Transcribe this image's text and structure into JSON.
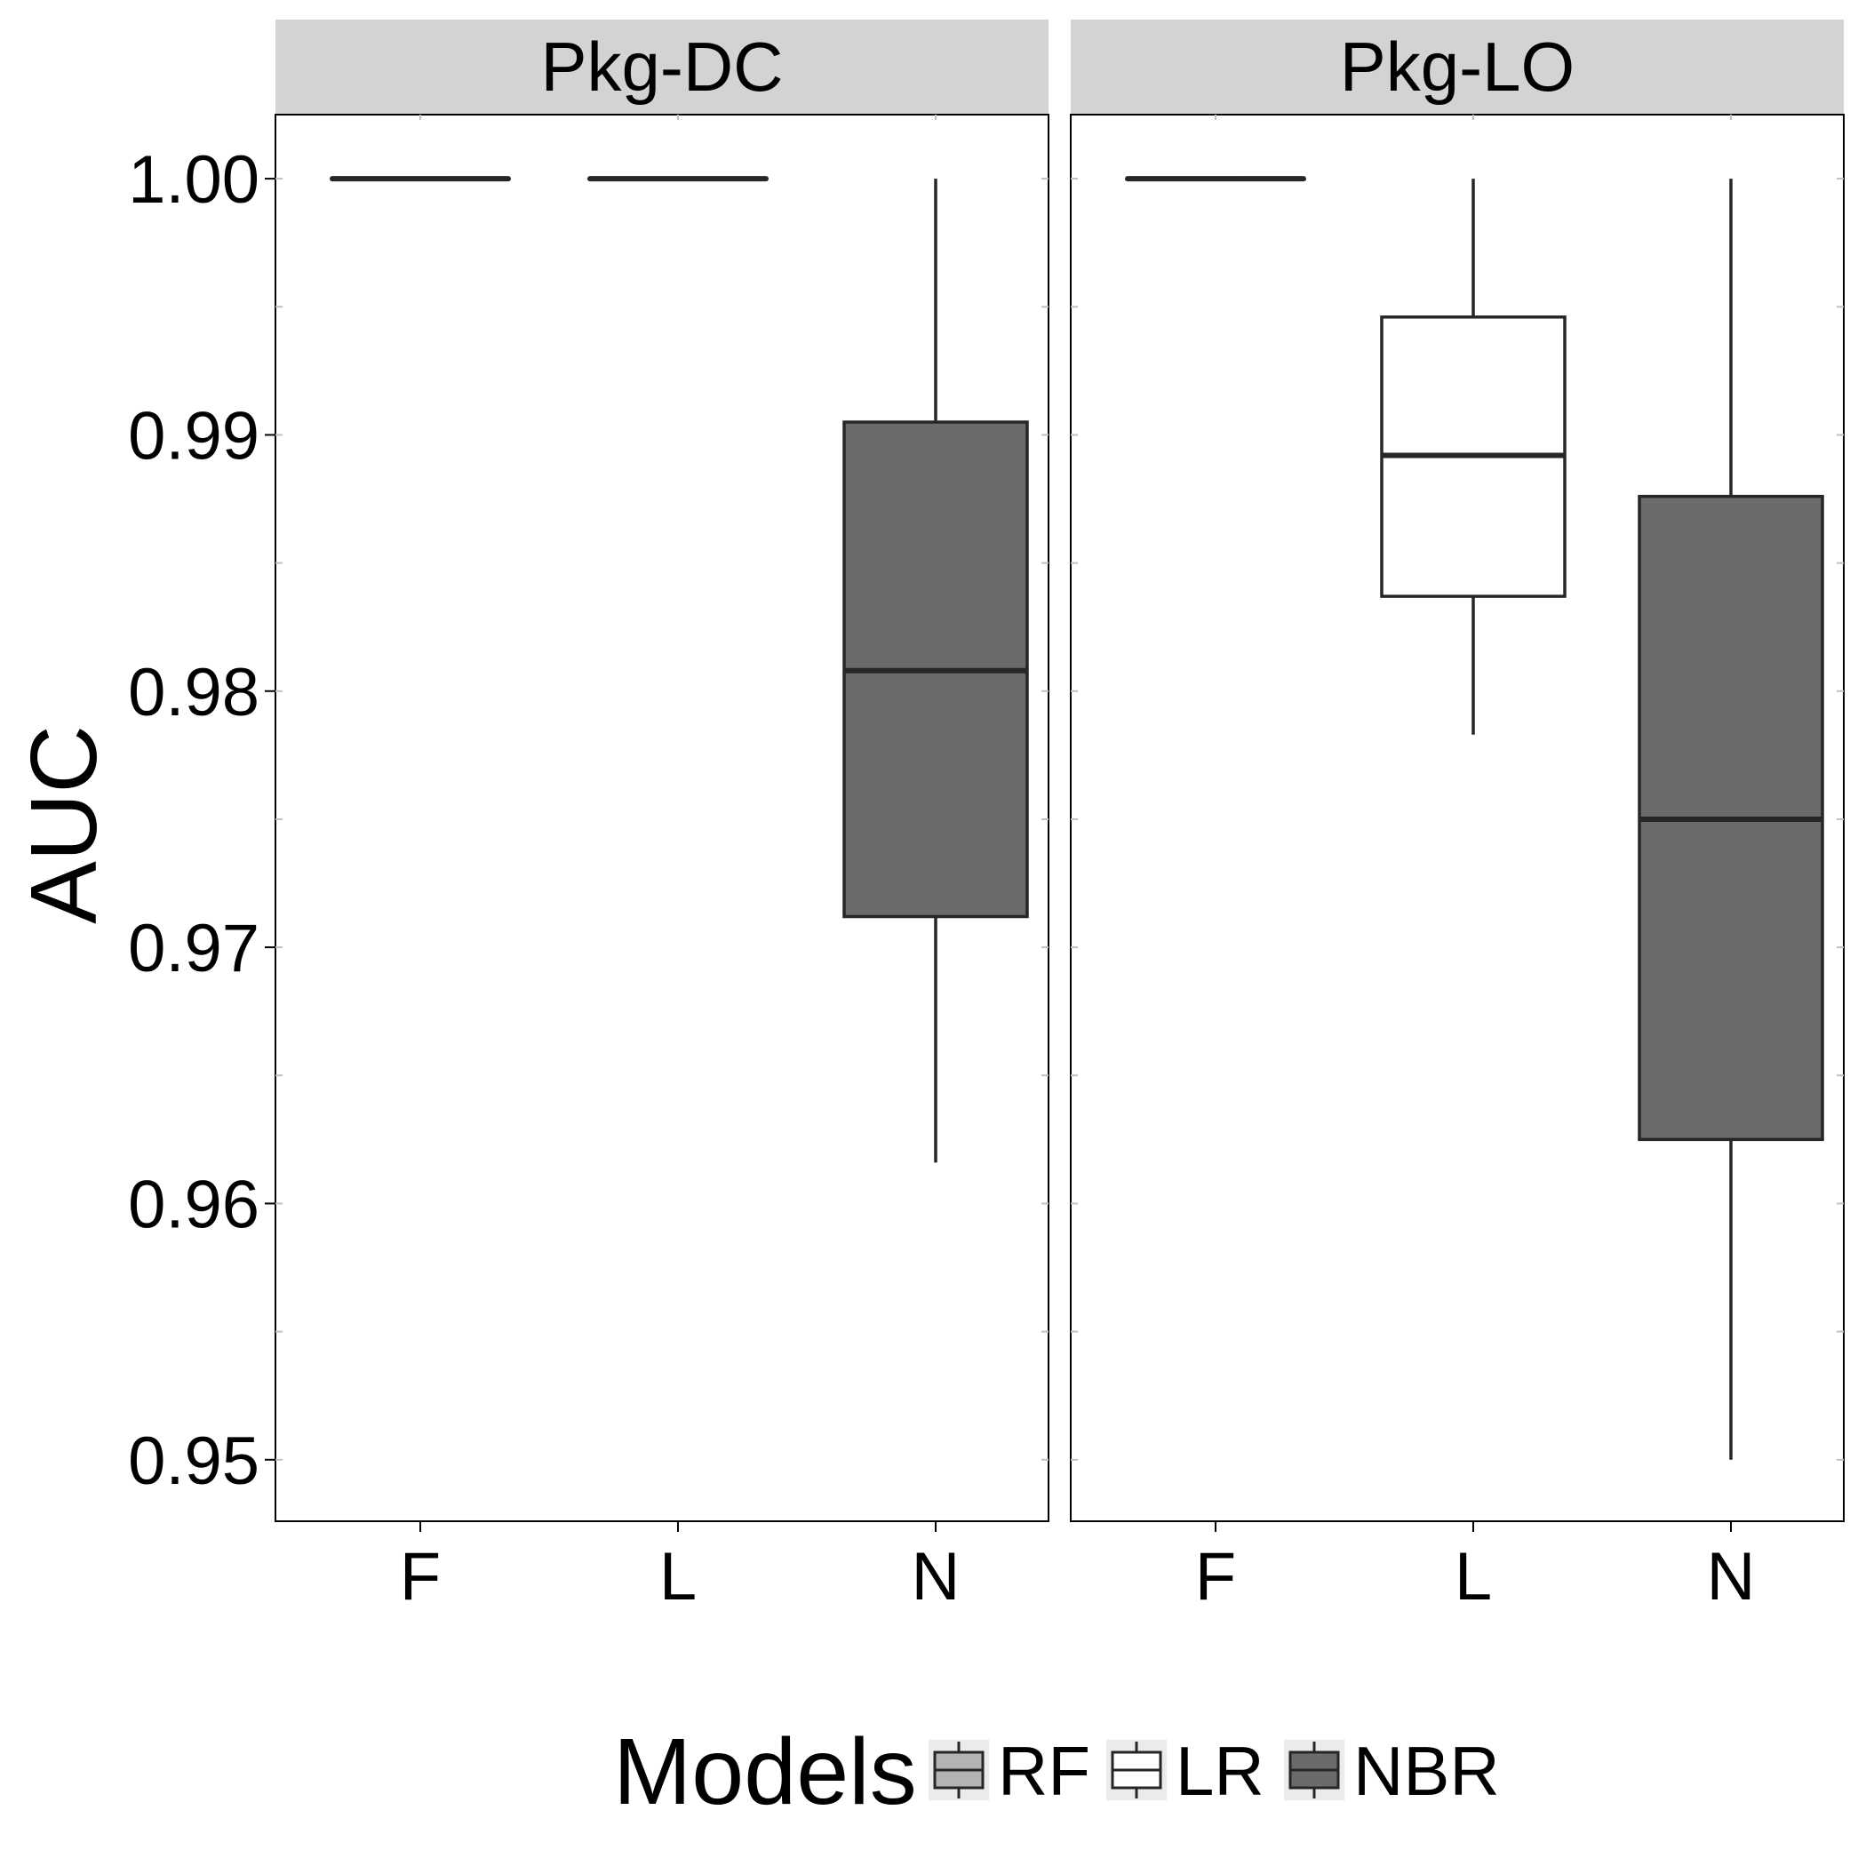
{
  "chart_data": {
    "type": "boxplot",
    "ylabel": "AUC",
    "xlabel": "",
    "ylim": [
      0.9476,
      1.0025
    ],
    "y_ticks": [
      1.0,
      0.99,
      0.98,
      0.97,
      0.96,
      0.95
    ],
    "y_tick_labels": [
      "1.00",
      "0.99",
      "0.98",
      "0.97",
      "0.96",
      "0.95"
    ],
    "categories": [
      "F",
      "L",
      "N"
    ],
    "legend": {
      "title": "Models",
      "position": "bottom",
      "entries": [
        {
          "label": "RF",
          "fill": "#b3b3b3"
        },
        {
          "label": "LR",
          "fill": "#ffffff"
        },
        {
          "label": "NBR",
          "fill": "#6b6b6b"
        }
      ]
    },
    "panels": [
      {
        "title": "Pkg-DC",
        "boxes": [
          {
            "category": "F",
            "model": "RF",
            "fill": "#b3b3b3",
            "min": 1.0,
            "q1": 1.0,
            "median": 1.0,
            "q3": 1.0,
            "max": 1.0
          },
          {
            "category": "L",
            "model": "LR",
            "fill": "#ffffff",
            "min": 1.0,
            "q1": 1.0,
            "median": 1.0,
            "q3": 1.0,
            "max": 1.0
          },
          {
            "category": "N",
            "model": "NBR",
            "fill": "#6b6b6b",
            "min": 0.9616,
            "q1": 0.9712,
            "median": 0.9808,
            "q3": 0.9905,
            "max": 1.0
          }
        ]
      },
      {
        "title": "Pkg-LO",
        "boxes": [
          {
            "category": "F",
            "model": "RF",
            "fill": "#b3b3b3",
            "min": 1.0,
            "q1": 1.0,
            "median": 1.0,
            "q3": 1.0,
            "max": 1.0
          },
          {
            "category": "L",
            "model": "LR",
            "fill": "#ffffff",
            "min": 0.9783,
            "q1": 0.9837,
            "median": 0.9892,
            "q3": 0.9946,
            "max": 1.0
          },
          {
            "category": "N",
            "model": "NBR",
            "fill": "#6b6b6b",
            "min": 0.95,
            "q1": 0.9625,
            "median": 0.975,
            "q3": 0.9876,
            "max": 1.0
          }
        ]
      }
    ]
  }
}
